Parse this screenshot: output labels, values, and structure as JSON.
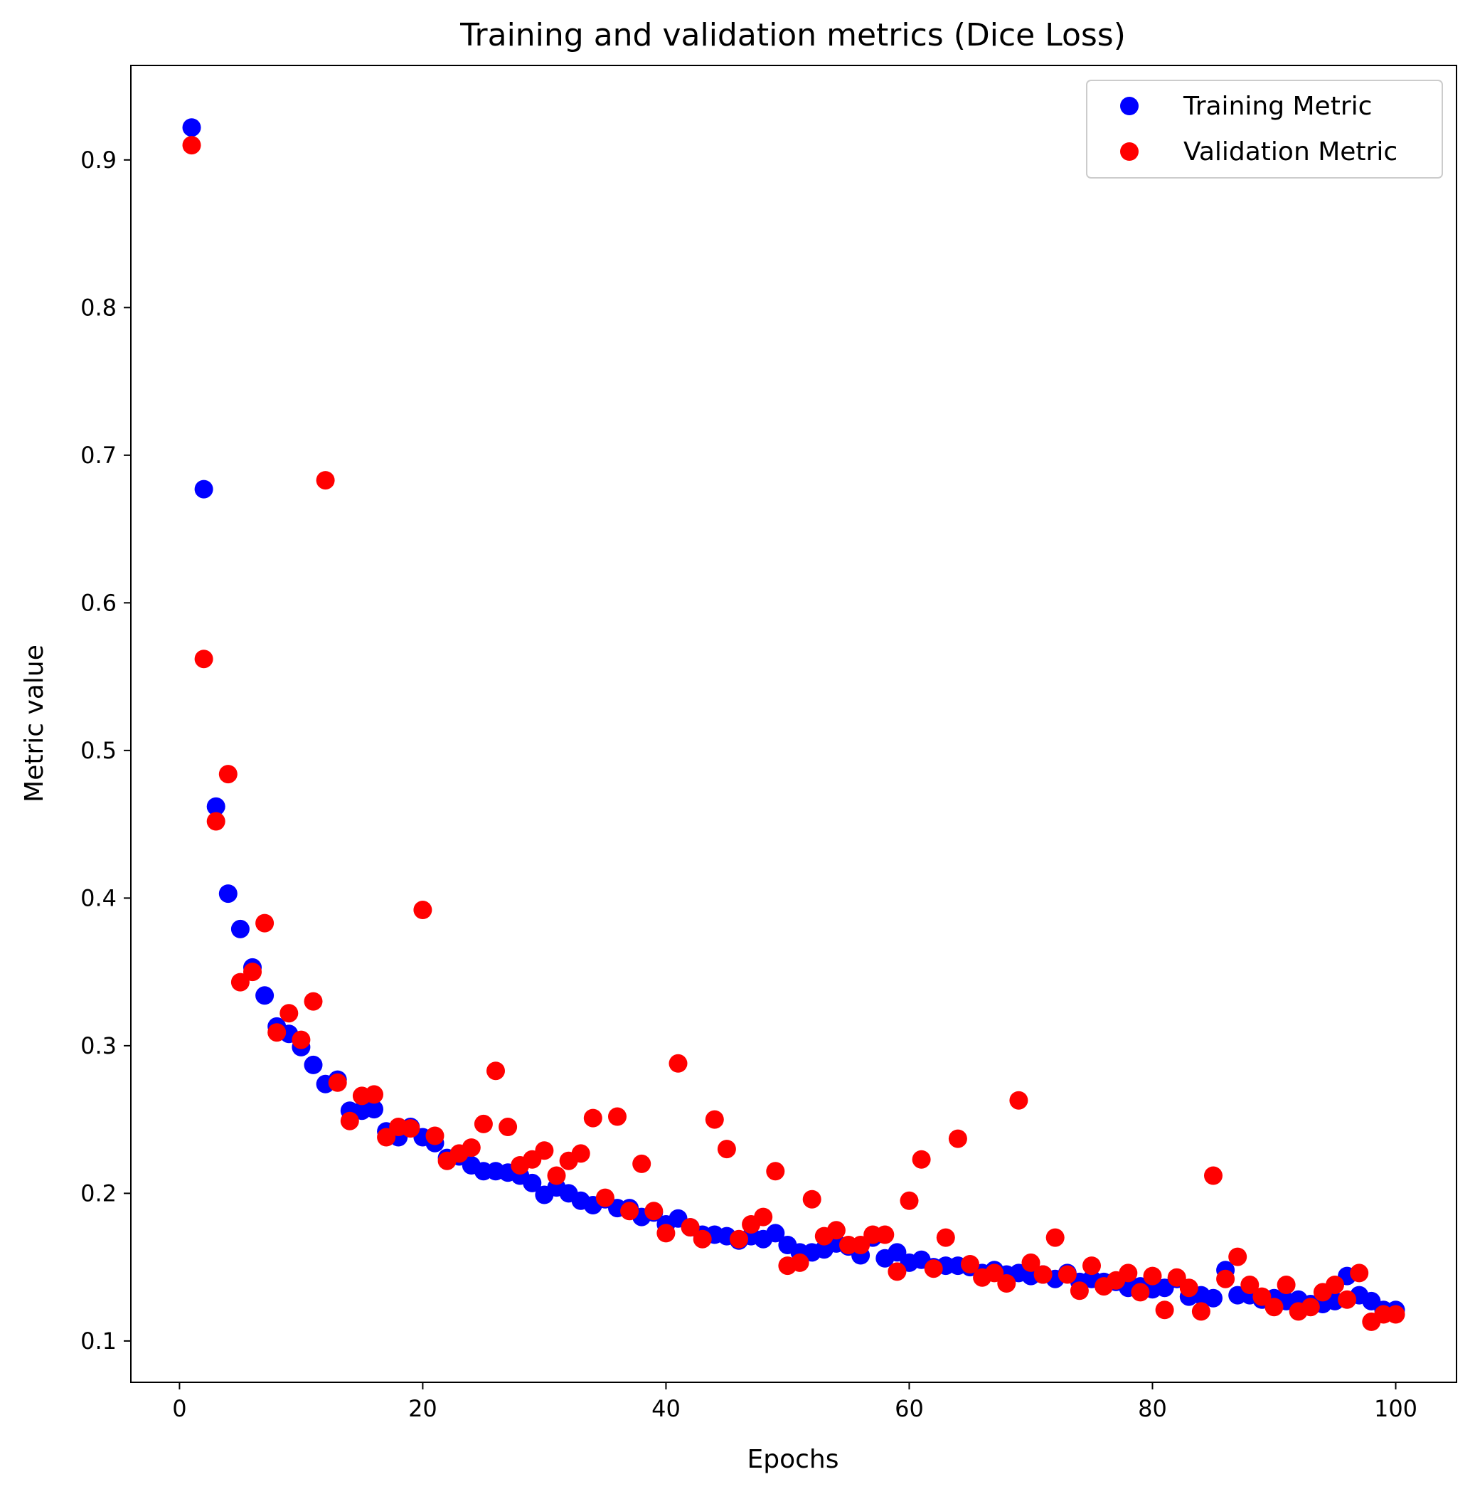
{
  "chart_data": {
    "type": "scatter",
    "title": "Training and validation metrics (Dice Loss)",
    "xlabel": "Epochs",
    "ylabel": "Metric value",
    "xlim": [
      -4,
      105
    ],
    "ylim": [
      0.072,
      0.964
    ],
    "xticks": [
      0,
      20,
      40,
      60,
      80,
      100
    ],
    "yticks": [
      0.1,
      0.2,
      0.3,
      0.4,
      0.5,
      0.6,
      0.7,
      0.8,
      0.9
    ],
    "grid": false,
    "legend_position": "top-right",
    "x": [
      1,
      2,
      3,
      4,
      5,
      6,
      7,
      8,
      9,
      10,
      11,
      12,
      13,
      14,
      15,
      16,
      17,
      18,
      19,
      20,
      21,
      22,
      23,
      24,
      25,
      26,
      27,
      28,
      29,
      30,
      31,
      32,
      33,
      34,
      35,
      36,
      37,
      38,
      39,
      40,
      41,
      42,
      43,
      44,
      45,
      46,
      47,
      48,
      49,
      50,
      51,
      52,
      53,
      54,
      55,
      56,
      57,
      58,
      59,
      60,
      61,
      62,
      63,
      64,
      65,
      66,
      67,
      68,
      69,
      70,
      71,
      72,
      73,
      74,
      75,
      76,
      77,
      78,
      79,
      80,
      81,
      82,
      83,
      84,
      85,
      86,
      87,
      88,
      89,
      90,
      91,
      92,
      93,
      94,
      95,
      96,
      97,
      98,
      99,
      100
    ],
    "series": [
      {
        "name": "Training Metric",
        "color": "#0000ff",
        "values": [
          0.922,
          0.677,
          0.462,
          0.403,
          0.379,
          0.353,
          0.334,
          0.313,
          0.308,
          0.299,
          0.287,
          0.274,
          0.277,
          0.256,
          0.256,
          0.257,
          0.242,
          0.238,
          0.245,
          0.238,
          0.234,
          0.224,
          0.225,
          0.219,
          0.215,
          0.215,
          0.214,
          0.212,
          0.207,
          0.199,
          0.204,
          0.2,
          0.195,
          0.192,
          0.196,
          0.19,
          0.19,
          0.184,
          0.187,
          0.179,
          0.183,
          0.177,
          0.172,
          0.172,
          0.171,
          0.168,
          0.171,
          0.169,
          0.173,
          0.165,
          0.16,
          0.16,
          0.162,
          0.166,
          0.164,
          0.158,
          0.17,
          0.156,
          0.16,
          0.153,
          0.155,
          0.15,
          0.151,
          0.151,
          0.15,
          0.146,
          0.148,
          0.145,
          0.146,
          0.144,
          0.145,
          0.142,
          0.146,
          0.14,
          0.142,
          0.14,
          0.14,
          0.136,
          0.137,
          0.135,
          0.136,
          0.142,
          0.13,
          0.131,
          0.129,
          0.148,
          0.131,
          0.131,
          0.128,
          0.129,
          0.127,
          0.128,
          0.125,
          0.125,
          0.127,
          0.144,
          0.131,
          0.127,
          0.121,
          0.121
        ]
      },
      {
        "name": "Validation Metric",
        "color": "#ff0000",
        "values": [
          0.91,
          0.562,
          0.452,
          0.484,
          0.343,
          0.35,
          0.383,
          0.309,
          0.322,
          0.304,
          0.33,
          0.683,
          0.275,
          0.249,
          0.266,
          0.267,
          0.238,
          0.245,
          0.244,
          0.392,
          0.239,
          0.222,
          0.227,
          0.231,
          0.247,
          0.283,
          0.245,
          0.219,
          0.223,
          0.229,
          0.212,
          0.222,
          0.227,
          0.251,
          0.197,
          0.252,
          0.188,
          0.22,
          0.188,
          0.173,
          0.288,
          0.177,
          0.169,
          0.25,
          0.23,
          0.169,
          0.179,
          0.184,
          0.215,
          0.151,
          0.153,
          0.196,
          0.171,
          0.175,
          0.165,
          0.165,
          0.172,
          0.172,
          0.147,
          0.195,
          0.223,
          0.149,
          0.17,
          0.237,
          0.152,
          0.143,
          0.146,
          0.139,
          0.263,
          0.153,
          0.145,
          0.17,
          0.145,
          0.134,
          0.151,
          0.137,
          0.141,
          0.146,
          0.133,
          0.144,
          0.121,
          0.143,
          0.136,
          0.12,
          0.212,
          0.142,
          0.157,
          0.138,
          0.13,
          0.123,
          0.138,
          0.12,
          0.123,
          0.133,
          0.138,
          0.128,
          0.146,
          0.113,
          0.118,
          0.118
        ]
      }
    ]
  }
}
